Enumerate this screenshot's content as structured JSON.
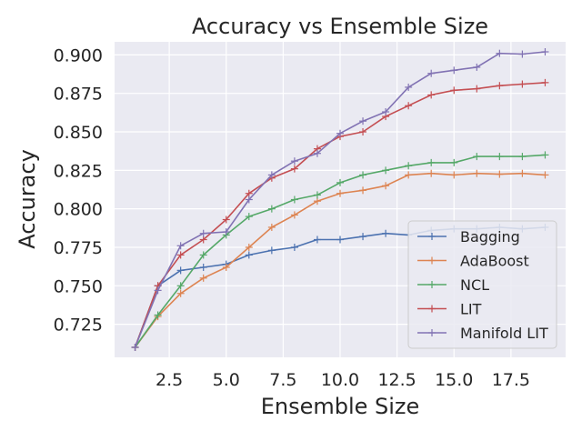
{
  "chart_data": {
    "type": "line",
    "title": "Accuracy vs Ensemble Size",
    "xlabel": "Ensemble Size",
    "ylabel": "Accuracy",
    "xlim": [
      0.1,
      19.9
    ],
    "ylim": [
      0.7035,
      0.9085
    ],
    "xticks": [
      2.5,
      5.0,
      7.5,
      10.0,
      12.5,
      15.0,
      17.5
    ],
    "xtick_labels": [
      "2.5",
      "5.0",
      "7.5",
      "10.0",
      "12.5",
      "15.0",
      "17.5"
    ],
    "yticks": [
      0.725,
      0.75,
      0.775,
      0.8,
      0.825,
      0.85,
      0.875,
      0.9
    ],
    "ytick_labels": [
      "0.725",
      "0.750",
      "0.775",
      "0.800",
      "0.825",
      "0.850",
      "0.875",
      "0.900"
    ],
    "grid": true,
    "background": "#eaeaf2",
    "legend_position": "bottom-right",
    "marker": "plus",
    "x": [
      1,
      2,
      3,
      4,
      5,
      6,
      7,
      8,
      9,
      10,
      11,
      12,
      13,
      14,
      15,
      16,
      17,
      18,
      19
    ],
    "series": [
      {
        "name": "Bagging",
        "color": "#4c72b0",
        "values": [
          0.71,
          0.75,
          0.76,
          0.762,
          0.764,
          0.77,
          0.773,
          0.775,
          0.78,
          0.78,
          0.782,
          0.784,
          0.783,
          0.786,
          0.787,
          0.787,
          0.788,
          0.787,
          0.788
        ]
      },
      {
        "name": "AdaBoost",
        "color": "#dd8452",
        "values": [
          0.71,
          0.73,
          0.745,
          0.755,
          0.762,
          0.775,
          0.788,
          0.796,
          0.805,
          0.81,
          0.812,
          0.815,
          0.822,
          0.823,
          0.822,
          0.823,
          0.8225,
          0.823,
          0.822
        ]
      },
      {
        "name": "NCL",
        "color": "#55a868",
        "values": [
          0.71,
          0.731,
          0.75,
          0.77,
          0.783,
          0.795,
          0.8,
          0.806,
          0.809,
          0.817,
          0.822,
          0.825,
          0.828,
          0.83,
          0.83,
          0.834,
          0.834,
          0.834,
          0.835
        ]
      },
      {
        "name": "LIT",
        "color": "#c44e52",
        "values": [
          0.71,
          0.75,
          0.77,
          0.78,
          0.793,
          0.81,
          0.82,
          0.826,
          0.839,
          0.847,
          0.85,
          0.86,
          0.867,
          0.874,
          0.877,
          0.878,
          0.88,
          0.881,
          0.882
        ]
      },
      {
        "name": "Manifold LIT",
        "color": "#8172b3",
        "values": [
          0.71,
          0.747,
          0.776,
          0.784,
          0.785,
          0.806,
          0.822,
          0.831,
          0.836,
          0.849,
          0.857,
          0.863,
          0.879,
          0.888,
          0.89,
          0.892,
          0.901,
          0.9005,
          0.902
        ]
      }
    ]
  }
}
